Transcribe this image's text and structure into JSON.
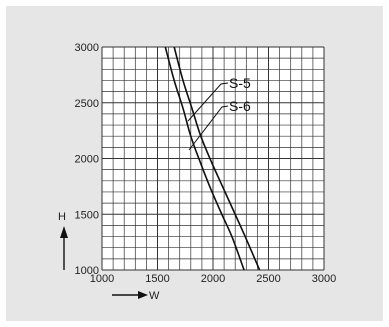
{
  "chart_data": {
    "type": "line",
    "xlabel": "W",
    "ylabel": "H",
    "xlim": [
      1000,
      3000
    ],
    "ylim": [
      1000,
      3000
    ],
    "x_ticks": [
      1000,
      1500,
      2000,
      2500,
      3000
    ],
    "y_ticks": [
      1000,
      1500,
      2000,
      2500,
      3000
    ],
    "grid": true,
    "colors": {
      "panel": "#e6e6e6",
      "grid": "#333333",
      "line": "#111111"
    },
    "series": [
      {
        "name": "S-5",
        "points": [
          [
            1570,
            3000
          ],
          [
            1650,
            2700
          ],
          [
            1730,
            2450
          ],
          [
            1800,
            2200
          ],
          [
            1880,
            1980
          ],
          [
            1970,
            1750
          ],
          [
            2070,
            1520
          ],
          [
            2170,
            1300
          ],
          [
            2280,
            1000
          ]
        ]
      },
      {
        "name": "S-6",
        "points": [
          [
            1650,
            3000
          ],
          [
            1730,
            2700
          ],
          [
            1810,
            2450
          ],
          [
            1890,
            2200
          ],
          [
            1990,
            1960
          ],
          [
            2090,
            1740
          ],
          [
            2190,
            1520
          ],
          [
            2290,
            1300
          ],
          [
            2420,
            1000
          ]
        ]
      }
    ]
  }
}
